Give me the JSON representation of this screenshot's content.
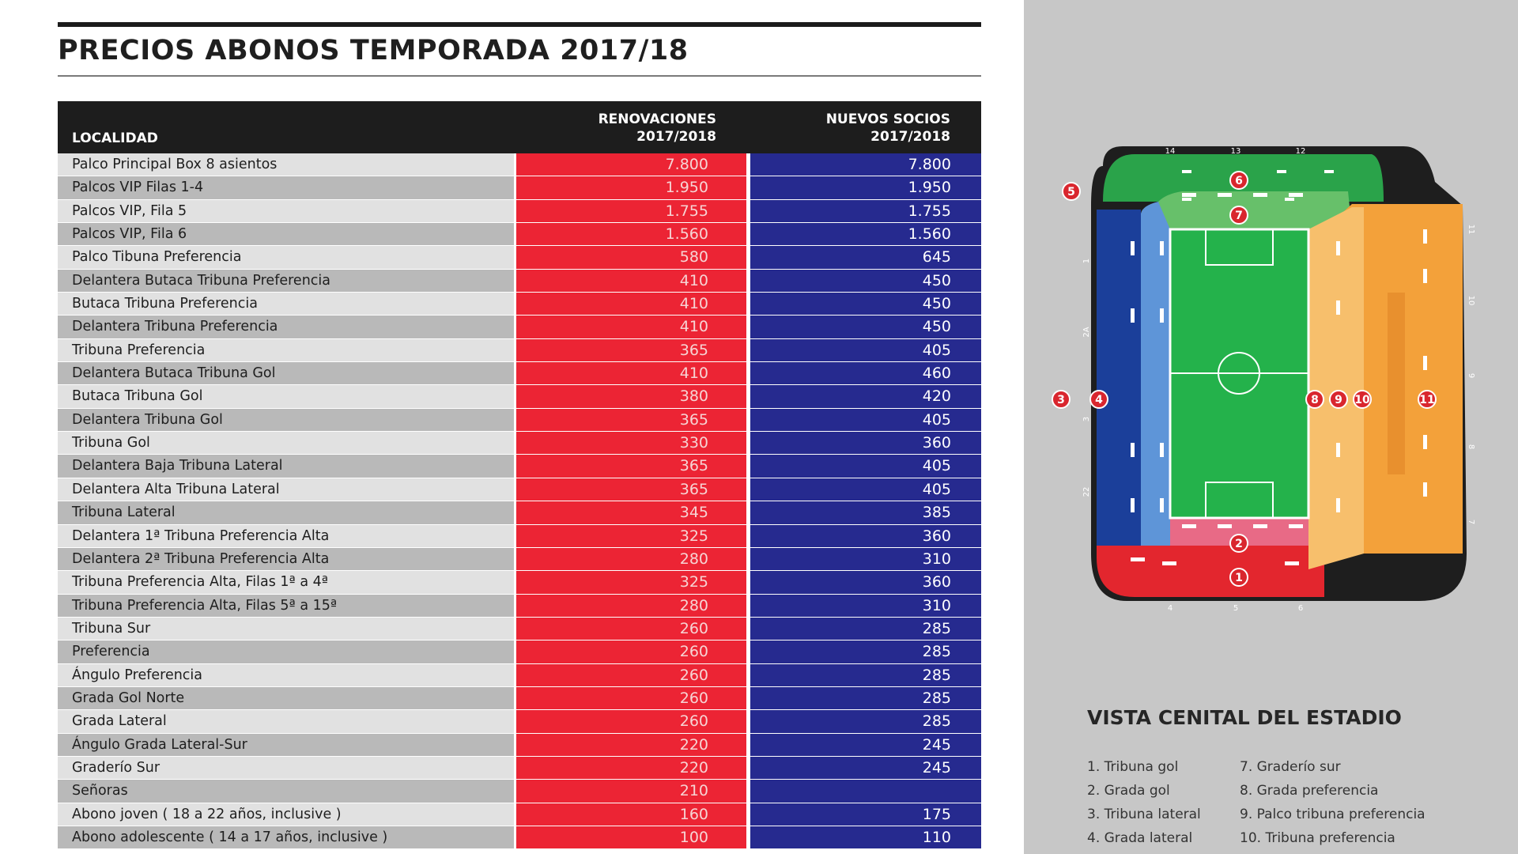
{
  "title": "PRECIOS ABONOS TEMPORADA 2017/18",
  "table": {
    "headers": {
      "localidad": "LOCALIDAD",
      "renovaciones_line1": "RENOVACIONES",
      "renovaciones_line2": "2017/2018",
      "nuevos_line1": "NUEVOS SOCIOS",
      "nuevos_line2": "2017/2018"
    },
    "rows": [
      {
        "localidad": "Palco Principal Box 8 asientos",
        "renovaciones": "7.800",
        "nuevos": "7.800"
      },
      {
        "localidad": "Palcos VIP Filas 1-4",
        "renovaciones": "1.950",
        "nuevos": "1.950"
      },
      {
        "localidad": "Palcos VIP, Fila 5",
        "renovaciones": "1.755",
        "nuevos": "1.755"
      },
      {
        "localidad": "Palcos VIP, Fila 6",
        "renovaciones": "1.560",
        "nuevos": "1.560"
      },
      {
        "localidad": "Palco Tibuna Preferencia",
        "renovaciones": "580",
        "nuevos": "645"
      },
      {
        "localidad": "Delantera Butaca Tribuna Preferencia",
        "renovaciones": "410",
        "nuevos": "450"
      },
      {
        "localidad": "Butaca Tribuna Preferencia",
        "renovaciones": "410",
        "nuevos": "450"
      },
      {
        "localidad": "Delantera Tribuna Preferencia",
        "renovaciones": "410",
        "nuevos": "450"
      },
      {
        "localidad": "Tribuna Preferencia",
        "renovaciones": "365",
        "nuevos": "405"
      },
      {
        "localidad": "Delantera Butaca Tribuna Gol",
        "renovaciones": "410",
        "nuevos": "460"
      },
      {
        "localidad": "Butaca Tribuna Gol",
        "renovaciones": "380",
        "nuevos": "420"
      },
      {
        "localidad": "Delantera Tribuna Gol",
        "renovaciones": "365",
        "nuevos": "405"
      },
      {
        "localidad": "Tribuna Gol",
        "renovaciones": "330",
        "nuevos": "360"
      },
      {
        "localidad": "Delantera Baja Tribuna Lateral",
        "renovaciones": "365",
        "nuevos": "405"
      },
      {
        "localidad": "Delantera Alta Tribuna Lateral",
        "renovaciones": "365",
        "nuevos": "405"
      },
      {
        "localidad": "Tribuna Lateral",
        "renovaciones": "345",
        "nuevos": "385"
      },
      {
        "localidad": "Delantera 1ª Tribuna Preferencia Alta",
        "renovaciones": "325",
        "nuevos": "360"
      },
      {
        "localidad": "Delantera 2ª Tribuna Preferencia Alta",
        "renovaciones": "280",
        "nuevos": "310"
      },
      {
        "localidad": "Tribuna Preferencia Alta, Filas 1ª a 4ª",
        "renovaciones": "325",
        "nuevos": "360"
      },
      {
        "localidad": "Tribuna Preferencia Alta, Filas 5ª a 15ª",
        "renovaciones": "280",
        "nuevos": "310"
      },
      {
        "localidad": "Tribuna Sur",
        "renovaciones": "260",
        "nuevos": "285"
      },
      {
        "localidad": "Preferencia",
        "renovaciones": "260",
        "nuevos": "285"
      },
      {
        "localidad": "Ángulo Preferencia",
        "renovaciones": "260",
        "nuevos": "285"
      },
      {
        "localidad": "Grada Gol Norte",
        "renovaciones": "260",
        "nuevos": "285"
      },
      {
        "localidad": "Grada Lateral",
        "renovaciones": "260",
        "nuevos": "285"
      },
      {
        "localidad": "Ángulo Grada Lateral-Sur",
        "renovaciones": "220",
        "nuevos": "245"
      },
      {
        "localidad": "Graderío Sur",
        "renovaciones": "220",
        "nuevos": "245"
      },
      {
        "localidad": "Señoras",
        "renovaciones": "210",
        "nuevos": ""
      },
      {
        "localidad": "Abono joven ( 18 a 22 años, inclusive )",
        "renovaciones": "160",
        "nuevos": "175"
      },
      {
        "localidad": "Abono adolescente ( 14 a 17 años, inclusive )",
        "renovaciones": "100",
        "nuevos": "110"
      }
    ]
  },
  "stadium": {
    "section_labels": [
      "1",
      "2",
      "3",
      "4",
      "5",
      "6",
      "7",
      "8",
      "9",
      "10",
      "11"
    ],
    "gate_labels_top": [
      "14",
      "13",
      "12"
    ],
    "gate_labels_bottom": [
      "4",
      "5",
      "6"
    ],
    "gate_labels_left": [
      "1",
      "2A",
      "3",
      "22"
    ],
    "gate_labels_right": [
      "11",
      "10",
      "9",
      "8",
      "7"
    ],
    "colors": {
      "tribuna_gol": "#e3262e",
      "grada_gol": "#e86a86",
      "tribuna_lateral": "#1b3f9a",
      "grada_lateral": "#5e95d8",
      "tribuna_sur": "#2aa34a",
      "graderio_sur": "#67c06a",
      "preferencia": "#f3a13a",
      "pitch": "#24b24b"
    }
  },
  "vista": {
    "title": "VISTA CENITAL DEL ESTADIO",
    "legend_left": [
      "1. Tribuna gol",
      "2. Grada gol",
      "3. Tribuna lateral",
      "4. Grada lateral"
    ],
    "legend_right": [
      "7. Graderío sur",
      "8. Grada preferencia",
      "9. Palco tribuna preferencia",
      "10. Tribuna preferencia"
    ]
  }
}
